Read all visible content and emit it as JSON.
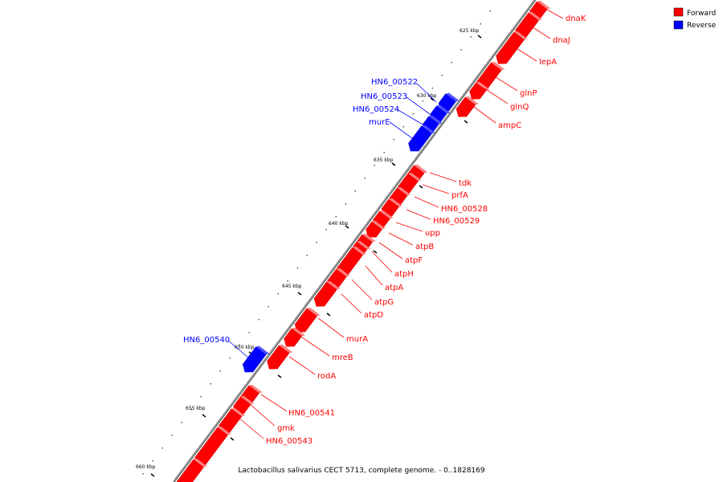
{
  "caption": "Lactobacillus salivarius CECT 5713, complete genome. - 0..1828169",
  "legend": [
    {
      "label": "Forward",
      "color": "#ff0000"
    },
    {
      "label": "Reverse",
      "color": "#0000ff"
    }
  ],
  "colors": {
    "forward": "#ff0000",
    "reverse": "#0000ff",
    "backbone": "#808080"
  },
  "ticks": [
    "625 kbp",
    "630 kbp",
    "635 kbp",
    "640 kbp",
    "645 kbp",
    "650 kbp",
    "655 kbp",
    "660 kbp"
  ],
  "genes": [
    {
      "name": "dnaK",
      "strand": "forward"
    },
    {
      "name": "dnaJ",
      "strand": "forward"
    },
    {
      "name": "lepA",
      "strand": "forward"
    },
    {
      "name": "glnP",
      "strand": "forward"
    },
    {
      "name": "glnQ",
      "strand": "forward"
    },
    {
      "name": "ampC",
      "strand": "forward"
    },
    {
      "name": "HN6_00522",
      "strand": "reverse"
    },
    {
      "name": "HN6_00523",
      "strand": "reverse"
    },
    {
      "name": "HN6_00524",
      "strand": "reverse"
    },
    {
      "name": "murE",
      "strand": "reverse"
    },
    {
      "name": "tdk",
      "strand": "forward"
    },
    {
      "name": "prfA",
      "strand": "forward"
    },
    {
      "name": "HN6_00528",
      "strand": "forward"
    },
    {
      "name": "HN6_00529",
      "strand": "forward"
    },
    {
      "name": "upp",
      "strand": "forward"
    },
    {
      "name": "atpB",
      "strand": "forward"
    },
    {
      "name": "atpF",
      "strand": "forward"
    },
    {
      "name": "atpH",
      "strand": "forward"
    },
    {
      "name": "atpA",
      "strand": "forward"
    },
    {
      "name": "atpG",
      "strand": "forward"
    },
    {
      "name": "atpD",
      "strand": "forward"
    },
    {
      "name": "murA",
      "strand": "forward"
    },
    {
      "name": "mreB",
      "strand": "forward"
    },
    {
      "name": "rodA",
      "strand": "forward"
    },
    {
      "name": "HN6_00540",
      "strand": "reverse"
    },
    {
      "name": "HN6_00541",
      "strand": "forward"
    },
    {
      "name": "gmk",
      "strand": "forward"
    },
    {
      "name": "HN6_00543",
      "strand": "forward"
    }
  ]
}
